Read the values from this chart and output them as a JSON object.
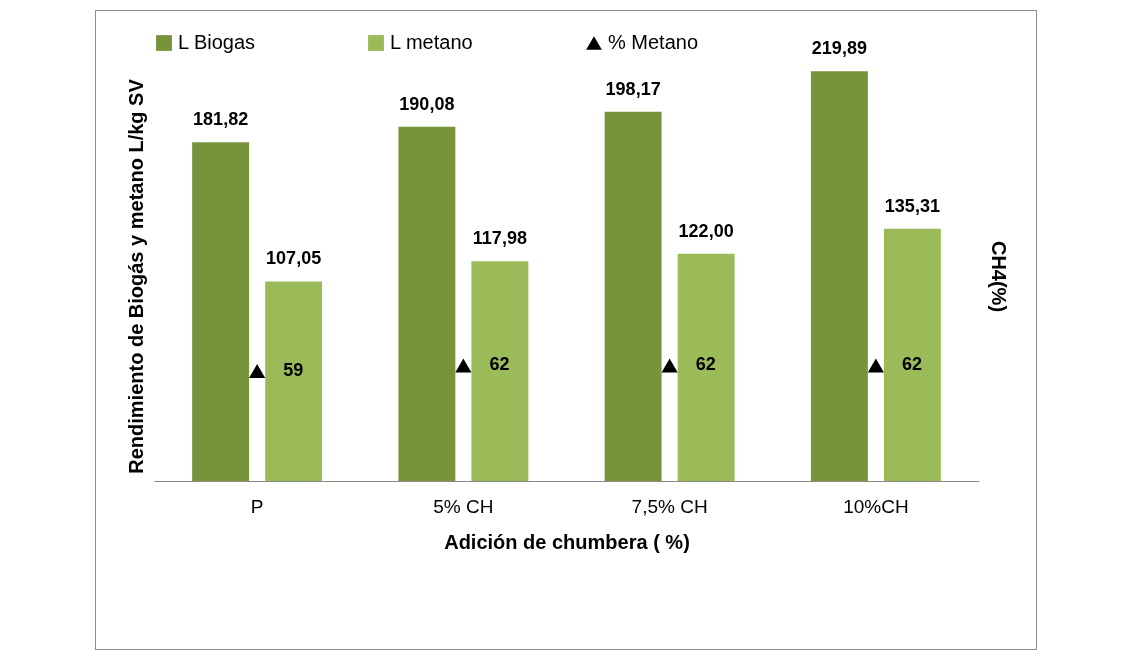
{
  "chart_data": {
    "type": "bar",
    "xlabel": "Adición de chumbera ( %)",
    "ylabel": "Rendimiento de Biogás y metano L/kg SV",
    "y2label": "CH4(%)",
    "categories": [
      "P",
      "5% CH",
      "7,5% CH",
      "10%CH"
    ],
    "series": [
      {
        "name": "L Biogas",
        "color": "#77933c",
        "values": [
          181.82,
          190.08,
          198.17,
          219.89
        ],
        "value_labels": [
          "181,82",
          "190,08",
          "198,17",
          "219,89"
        ]
      },
      {
        "name": "L metano",
        "color": "#9bbb59",
        "values": [
          107.05,
          117.98,
          122.0,
          135.31
        ],
        "value_labels": [
          "107,05",
          "117,98",
          "122,00",
          "135,31"
        ]
      },
      {
        "name": "% Metano",
        "type": "scatter",
        "axis": "y2",
        "marker": "triangle",
        "color": "#000000",
        "values": [
          59,
          62,
          62,
          62
        ],
        "value_labels": [
          "59",
          "62",
          "62",
          "62"
        ]
      }
    ],
    "tick_labels": "x",
    "legend": "top",
    "grid": false
  }
}
